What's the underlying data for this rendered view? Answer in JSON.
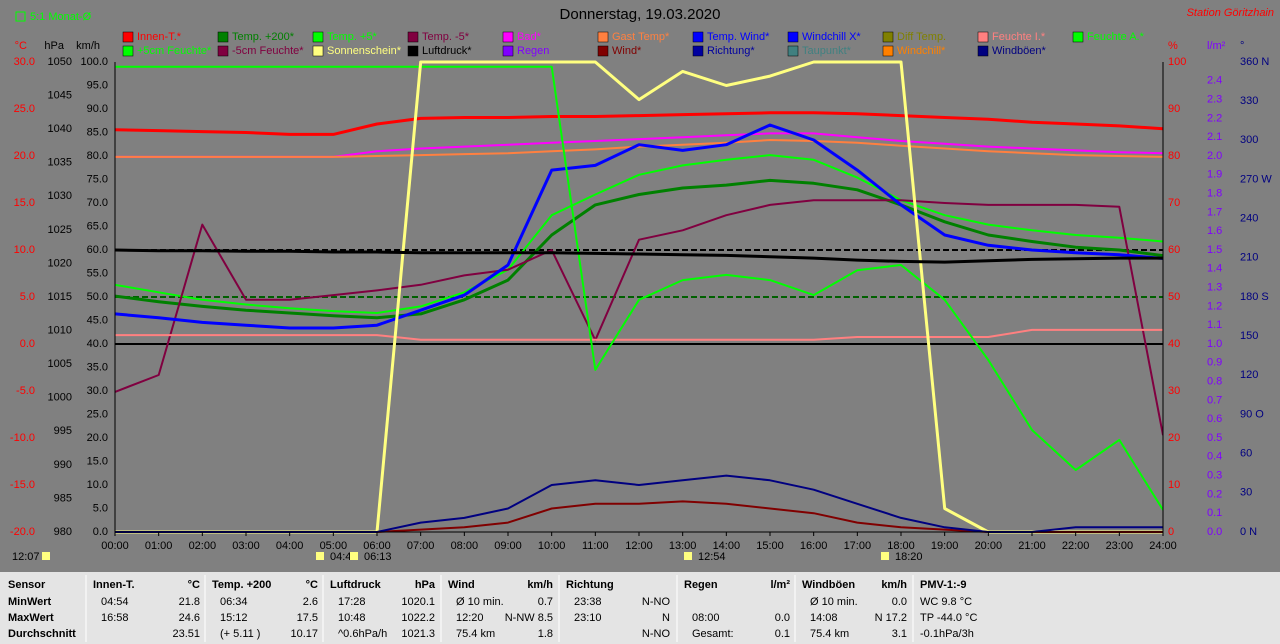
{
  "header": {
    "period": "5:1 Monat-Ø",
    "station": "Station Göritzhain"
  },
  "chart_data": {
    "type": "line",
    "title": "Donnerstag, 19.03.2020",
    "x": [
      0,
      1,
      2,
      3,
      4,
      5,
      6,
      7,
      8,
      9,
      10,
      11,
      12,
      13,
      14,
      15,
      16,
      17,
      18,
      19,
      20,
      21,
      22,
      23,
      24
    ],
    "xlim": [
      0,
      24
    ],
    "xticks": [
      {
        "value": 0,
        "label": "00:00"
      },
      {
        "value": 1,
        "label": "01:00"
      },
      {
        "value": 2,
        "label": "02:00"
      },
      {
        "value": 3,
        "label": "03:00"
      },
      {
        "value": 4,
        "label": "04:00"
      },
      {
        "value": 5,
        "label": "05:00"
      },
      {
        "value": 6,
        "label": "06:00"
      },
      {
        "value": 7,
        "label": "07:00"
      },
      {
        "value": 8,
        "label": "08:00"
      },
      {
        "value": 9,
        "label": "09:00"
      },
      {
        "value": 10,
        "label": "10:00"
      },
      {
        "value": 11,
        "label": "11:00"
      },
      {
        "value": 12,
        "label": "12:00"
      },
      {
        "value": 13,
        "label": "13:00"
      },
      {
        "value": 14,
        "label": "14:00"
      },
      {
        "value": 15,
        "label": "15:00"
      },
      {
        "value": 16,
        "label": "16:00"
      },
      {
        "value": 17,
        "label": "17:00"
      },
      {
        "value": 18,
        "label": "18:00"
      },
      {
        "value": 19,
        "label": "19:00"
      },
      {
        "value": 20,
        "label": "20:00"
      },
      {
        "value": 21,
        "label": "21:00"
      },
      {
        "value": 22,
        "label": "22:00"
      },
      {
        "value": 23,
        "label": "23:00"
      },
      {
        "value": 24,
        "label": "24:00"
      }
    ],
    "axes": [
      {
        "label": "°C",
        "color": "#ff0000",
        "lim": [
          -20,
          30
        ],
        "ticks": [
          {
            "value": 30,
            "label": "30.0"
          },
          {
            "value": 25,
            "label": "25.0"
          },
          {
            "value": 20,
            "label": "20.0"
          },
          {
            "value": 15,
            "label": "15.0"
          },
          {
            "value": 10,
            "label": "10.0"
          },
          {
            "value": 5,
            "label": "5.0"
          },
          {
            "value": 0,
            "label": "0.0"
          },
          {
            "value": -5,
            "label": "-5.0"
          },
          {
            "value": -10,
            "label": "-10.0"
          },
          {
            "value": -15,
            "label": "-15.0"
          },
          {
            "value": -20,
            "label": "-20.0"
          }
        ]
      },
      {
        "label": "hPa",
        "color": "#000000",
        "lim": [
          980,
          1050
        ],
        "ticks": [
          1050,
          1045,
          1040,
          1035,
          1030,
          1025,
          1020,
          1015,
          1010,
          1005,
          1000,
          995,
          990,
          985,
          980
        ]
      },
      {
        "label": "km/h",
        "color": "#000000",
        "lim": [
          0,
          100
        ],
        "ticks": [
          {
            "value": 100,
            "label": "100.0"
          },
          {
            "value": 95,
            "label": "95.0"
          },
          {
            "value": 90,
            "label": "90.0"
          },
          {
            "value": 85,
            "label": "85.0"
          },
          {
            "value": 80,
            "label": "80.0"
          },
          {
            "value": 75,
            "label": "75.0"
          },
          {
            "value": 70,
            "label": "70.0"
          },
          {
            "value": 65,
            "label": "65.0"
          },
          {
            "value": 60,
            "label": "60.0"
          },
          {
            "value": 55,
            "label": "55.0"
          },
          {
            "value": 50,
            "label": "50.0"
          },
          {
            "value": 45,
            "label": "45.0"
          },
          {
            "value": 40,
            "label": "40.0"
          },
          {
            "value": 35,
            "label": "35.0"
          },
          {
            "value": 30,
            "label": "30.0"
          },
          {
            "value": 25,
            "label": "25.0"
          },
          {
            "value": 20,
            "label": "20.0"
          },
          {
            "value": 15,
            "label": "15.0"
          },
          {
            "value": 10,
            "label": "10.0"
          },
          {
            "value": 5,
            "label": "5.0"
          },
          {
            "value": 0,
            "label": "0.0"
          }
        ]
      },
      {
        "label": "%",
        "color": "#ff0000",
        "lim": [
          0,
          100
        ],
        "ticks": [
          100,
          90,
          80,
          70,
          60,
          50,
          40,
          30,
          20,
          10,
          0
        ]
      },
      {
        "label": "l/m²",
        "color": "#8000ff",
        "lim": [
          0,
          2.5
        ],
        "ticks": [
          2.4,
          2.3,
          2.2,
          2.1,
          {
            "value": 2,
            "label": "2.0"
          },
          1.9,
          1.8,
          1.7,
          1.6,
          1.5,
          1.4,
          1.3,
          1.2,
          1.1,
          {
            "value": 1,
            "label": "1.0"
          },
          0.9,
          0.8,
          0.7,
          0.6,
          0.5,
          0.4,
          0.3,
          0.2,
          0.1,
          {
            "value": 0,
            "label": "0.0"
          }
        ]
      },
      {
        "label": "°",
        "color": "#000080",
        "lim": [
          0,
          360
        ],
        "ticks": [
          {
            "value": 360,
            "label": "360 N"
          },
          330,
          300,
          {
            "value": 270,
            "label": "270 W"
          },
          240,
          210,
          {
            "value": 180,
            "label": "180 S"
          },
          150,
          120,
          {
            "value": 90,
            "label": "90 O"
          },
          60,
          30,
          {
            "value": 0,
            "label": "0 N"
          }
        ]
      }
    ],
    "series": [
      {
        "name": "Innen-T.*",
        "color": "#ff0000",
        "axis": 0,
        "values": [
          22.8,
          22.7,
          22.6,
          22.5,
          22.3,
          22.3,
          23.4,
          24.0,
          24.1,
          24.1,
          24.2,
          24.2,
          24.3,
          24.4,
          24.5,
          24.6,
          24.6,
          24.5,
          24.3,
          24.1,
          23.9,
          23.6,
          23.4,
          23.2,
          22.9
        ]
      },
      {
        "name": "Temp. +200*",
        "color": "#008000",
        "axis": 0,
        "values": [
          5.1,
          4.5,
          4.0,
          3.6,
          3.3,
          3.0,
          2.8,
          3.2,
          4.7,
          6.8,
          11.6,
          14.8,
          15.9,
          16.6,
          16.9,
          17.4,
          17.1,
          16.4,
          14.8,
          13.0,
          11.6,
          10.9,
          10.3,
          10.0,
          9.4
        ]
      },
      {
        "name": "Temp. +5*",
        "color": "#00ff00",
        "axis": 0,
        "values": [
          6.3,
          5.5,
          4.7,
          4.2,
          3.8,
          3.5,
          3.3,
          4.0,
          5.5,
          7.9,
          13.7,
          15.9,
          18.0,
          19.0,
          19.6,
          20.1,
          19.6,
          17.7,
          15.3,
          13.7,
          12.7,
          12.1,
          11.6,
          11.3,
          10.9
        ]
      },
      {
        "name": "Temp. -5*",
        "color": "#800040",
        "axis": 0,
        "values": [
          -5.1,
          -3.3,
          12.7,
          4.7,
          4.7,
          5.2,
          5.7,
          6.3,
          7.3,
          7.9,
          10.0,
          0.4,
          11.1,
          12.1,
          13.7,
          14.8,
          15.3,
          15.3,
          15.3,
          15.0,
          14.8,
          14.8,
          14.8,
          14.6,
          -9.7
        ]
      },
      {
        "name": "Bad*",
        "color": "#ff00ff",
        "axis": 0,
        "values": [
          19.9,
          19.9,
          19.9,
          19.9,
          19.9,
          19.9,
          20.5,
          20.8,
          21.0,
          21.2,
          21.4,
          21.6,
          21.8,
          22.0,
          22.2,
          22.4,
          22.4,
          22.0,
          21.6,
          21.3,
          21.0,
          20.8,
          20.6,
          20.4,
          20.3
        ]
      },
      {
        "name": "Gast Temp*",
        "color": "#ff8040",
        "axis": 0,
        "values": [
          19.9,
          19.9,
          19.9,
          19.9,
          19.9,
          19.9,
          20.0,
          20.1,
          20.2,
          20.3,
          20.5,
          20.7,
          21.0,
          21.2,
          21.4,
          21.7,
          21.6,
          21.4,
          21.1,
          20.8,
          20.5,
          20.3,
          20.1,
          20.0,
          19.9
        ]
      },
      {
        "name": "Temp. Wind*",
        "color": "#0000ff",
        "axis": 0,
        "values": [
          3.2,
          2.8,
          2.3,
          2.0,
          1.7,
          1.7,
          2.0,
          3.6,
          5.2,
          8.4,
          18.5,
          19.0,
          21.2,
          20.6,
          21.2,
          23.3,
          21.7,
          18.5,
          14.8,
          11.6,
          10.5,
          10.0,
          9.7,
          9.5,
          9.1
        ]
      },
      {
        "name": "Windchill X*",
        "color": "#0000ff"
      },
      {
        "name": "Diff Temp.",
        "color": "#808000"
      },
      {
        "name": "Feuchte I.*",
        "color": "#ff8080",
        "axis": 3,
        "values": [
          41.9,
          41.9,
          41.9,
          41.9,
          41.9,
          41.9,
          41.9,
          40.9,
          40.9,
          40.9,
          40.9,
          40.9,
          40.9,
          40.9,
          40.9,
          40.9,
          40.9,
          41.5,
          41.5,
          41.5,
          41.5,
          43.0,
          43.0,
          43.0,
          43.0
        ]
      },
      {
        "name": "Feuchte A.*",
        "color": "#00ff00",
        "axis": 3,
        "values": [
          99,
          99,
          99,
          99,
          99,
          99,
          99,
          99,
          99,
          99,
          99,
          34.5,
          49.4,
          53.6,
          54.7,
          53.6,
          50.4,
          55.7,
          56.8,
          49.4,
          36.6,
          21.7,
          13.2,
          19.6,
          4.7
        ]
      },
      {
        "name": "+5cm Feuchte*",
        "color": "#00ff00"
      },
      {
        "name": "-5cm Feuchte*",
        "color": "#800040"
      },
      {
        "name": "Sonnenschein*",
        "color": "#ffff80",
        "axis": 3,
        "values": [
          0,
          0,
          0,
          0,
          0,
          0,
          0,
          100,
          100,
          100,
          100,
          100,
          92,
          98,
          95,
          97,
          100,
          100,
          100,
          5,
          0,
          0,
          0,
          0,
          0
        ]
      },
      {
        "name": "Luftdruck*",
        "color": "#000000",
        "axis": 1,
        "values": [
          1022.0,
          1021.9,
          1021.9,
          1021.8,
          1021.8,
          1021.7,
          1021.7,
          1021.6,
          1021.6,
          1021.6,
          1021.6,
          1021.5,
          1021.4,
          1021.3,
          1021.2,
          1021.0,
          1020.8,
          1020.5,
          1020.3,
          1020.2,
          1020.4,
          1020.6,
          1020.7,
          1020.8,
          1020.8
        ]
      },
      {
        "name": "Regen",
        "color": "#8000ff"
      },
      {
        "name": "Wind*",
        "color": "#800000",
        "axis": 2,
        "values": [
          0,
          0,
          0,
          0,
          0,
          0,
          0,
          0.5,
          1,
          2,
          5,
          6,
          6,
          6.5,
          6,
          5,
          4,
          2,
          1,
          0.5,
          0,
          0,
          0,
          0,
          0
        ]
      },
      {
        "name": "Richtung*",
        "color": "#0000a0"
      },
      {
        "name": "Taupunkt*",
        "color": "#408080"
      },
      {
        "name": "Windchill*",
        "color": "#ff8000"
      },
      {
        "name": "Windböen*",
        "color": "#000080",
        "axis": 2,
        "values": [
          0,
          0,
          0,
          0,
          0,
          0,
          0,
          2,
          3,
          5,
          10,
          11,
          10,
          11,
          12,
          11,
          9,
          6,
          3,
          1,
          0,
          0,
          1,
          1,
          1
        ]
      }
    ],
    "annotations": [
      "04:4",
      "06:13",
      "12:54",
      "18:20",
      "12:07"
    ]
  },
  "stats": {
    "header": "Sensor",
    "row_labels": [
      "MinWert",
      "MaxWert",
      "Durchschnitt"
    ],
    "columns": [
      {
        "name": "Innen-T.",
        "unit": "°C",
        "rows": [
          {
            "label": "04:54",
            "value": "21.8"
          },
          {
            "label": "16:58",
            "value": "24.6"
          },
          {
            "value": "23.51"
          }
        ]
      },
      {
        "name": "Temp. +200",
        "unit": "°C",
        "rows": [
          {
            "label": "06:34",
            "value": "2.6"
          },
          {
            "label": "15:12",
            "value": "17.5"
          },
          {
            "label": "(+ 5.11 )",
            "value": "10.17"
          }
        ]
      },
      {
        "name": "Luftdruck",
        "unit": "hPa",
        "rows": [
          {
            "label": "17:28",
            "value": "1020.1"
          },
          {
            "label": "10:48",
            "value": "1022.2"
          },
          {
            "label": "^0.6hPa/h",
            "value": "1021.3"
          }
        ]
      },
      {
        "name": "Wind",
        "unit": "km/h",
        "rows": [
          {
            "label": "Ø 10 min.",
            "value": "0.7"
          },
          {
            "label": "12:20",
            "value": "N-NW 8.5"
          },
          {
            "label": "75.4 km",
            "value": "1.8"
          }
        ]
      },
      {
        "name": "Richtung",
        "rows": [
          {
            "label": "23:38",
            "value": "N-NO"
          },
          {
            "label": "23:10",
            "value": "N"
          },
          {
            "value": "N-NO"
          }
        ]
      },
      {
        "name": "Regen",
        "unit": "l/m²",
        "rows": [
          {},
          {
            "label": "08:00",
            "value": "0.0"
          },
          {
            "label": "Gesamt:",
            "value": "0.1"
          }
        ]
      },
      {
        "name": "Windböen",
        "unit": "km/h",
        "rows": [
          {
            "label": "Ø 10 min.",
            "value": "0.0"
          },
          {
            "label": "14:08",
            "value": "N 17.2"
          },
          {
            "label": "75.4 km",
            "value": "3.1"
          }
        ]
      },
      {
        "name": "PMV-1:-9",
        "rows": [
          {
            "label": "WC 9.8 °C"
          },
          {
            "label": "TP -44.0 °C"
          },
          {
            "label": "-0.1hPa/3h"
          }
        ]
      }
    ]
  }
}
